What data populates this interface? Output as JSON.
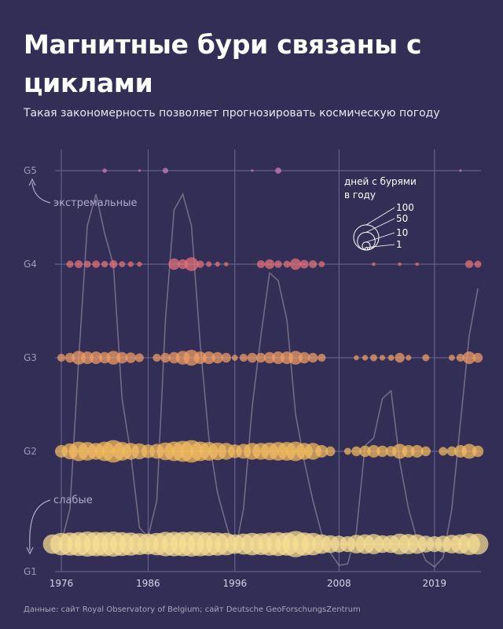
{
  "title": "Магнитные бури связаны с циклами",
  "subtitle": "Такая закономерность позволяет прогнозировать космическую погоду",
  "source": "Данные: сайт Royal Observatory of Belgium; сайт Deutsche GeoForschungsZentrum",
  "colors": {
    "background": "#322e55",
    "G1": "#f7df93",
    "G2": "#f5bd5f",
    "G3": "#f2a064",
    "G4": "#e9737c",
    "G5": "#d27cc4",
    "sunspot_line": "#8b7f98",
    "grid": "#6e6a92"
  },
  "chart_data": {
    "type": "scatter",
    "xlim": [
      1975,
      2024
    ],
    "x_ticks": [
      "1976",
      "1986",
      "1996",
      "2008",
      "2019"
    ],
    "levels": [
      "G1",
      "G2",
      "G3",
      "G4",
      "G5"
    ],
    "annotations": {
      "strong": "экстремальные",
      "weak": "слабые"
    },
    "legend": {
      "title_line1": "дней с бурями",
      "title_line2": "в году",
      "sizes": [
        100,
        50,
        10,
        1
      ],
      "labels": [
        "100",
        "50",
        "10",
        "1"
      ]
    },
    "series": [
      {
        "name": "G5",
        "points": [
          [
            1981,
            3
          ],
          [
            1985,
            1
          ],
          [
            1988,
            5
          ],
          [
            1998,
            1
          ],
          [
            2001,
            6
          ],
          [
            2022,
            1
          ]
        ]
      },
      {
        "name": "G4",
        "points": [
          [
            1977,
            8
          ],
          [
            1978,
            10
          ],
          [
            1979,
            8
          ],
          [
            1980,
            9
          ],
          [
            1981,
            7
          ],
          [
            1982,
            10
          ],
          [
            1983,
            6
          ],
          [
            1984,
            5
          ],
          [
            1985,
            4
          ],
          [
            1989,
            20
          ],
          [
            1990,
            15
          ],
          [
            1991,
            30
          ],
          [
            1992,
            9
          ],
          [
            1993,
            5
          ],
          [
            1994,
            4
          ],
          [
            1995,
            3
          ],
          [
            1999,
            10
          ],
          [
            2000,
            15
          ],
          [
            2001,
            9
          ],
          [
            2002,
            8
          ],
          [
            2003,
            20
          ],
          [
            2004,
            12
          ],
          [
            2005,
            10
          ],
          [
            2006,
            6
          ],
          [
            2012,
            2
          ],
          [
            2015,
            2
          ],
          [
            2017,
            2
          ],
          [
            2023,
            10
          ],
          [
            2024,
            8
          ]
        ]
      },
      {
        "name": "G3",
        "points": [
          [
            1976,
            10
          ],
          [
            1977,
            15
          ],
          [
            1978,
            30
          ],
          [
            1979,
            25
          ],
          [
            1980,
            25
          ],
          [
            1981,
            20
          ],
          [
            1982,
            30
          ],
          [
            1983,
            20
          ],
          [
            1984,
            18
          ],
          [
            1985,
            12
          ],
          [
            1987,
            10
          ],
          [
            1988,
            15
          ],
          [
            1989,
            20
          ],
          [
            1990,
            30
          ],
          [
            1991,
            40
          ],
          [
            1992,
            25
          ],
          [
            1993,
            25
          ],
          [
            1994,
            20
          ],
          [
            1995,
            15
          ],
          [
            1996,
            6
          ],
          [
            1997,
            10
          ],
          [
            1998,
            15
          ],
          [
            1999,
            15
          ],
          [
            2000,
            20
          ],
          [
            2001,
            25
          ],
          [
            2002,
            25
          ],
          [
            2003,
            30
          ],
          [
            2004,
            20
          ],
          [
            2005,
            15
          ],
          [
            2006,
            10
          ],
          [
            2010,
            4
          ],
          [
            2011,
            5
          ],
          [
            2012,
            8
          ],
          [
            2013,
            5
          ],
          [
            2014,
            6
          ],
          [
            2015,
            15
          ],
          [
            2016,
            5
          ],
          [
            2018,
            8
          ],
          [
            2021,
            6
          ],
          [
            2022,
            10
          ],
          [
            2023,
            25
          ],
          [
            2024,
            15
          ]
        ]
      },
      {
        "name": "G2",
        "points": [
          [
            1976,
            25
          ],
          [
            1977,
            40
          ],
          [
            1978,
            60
          ],
          [
            1979,
            55
          ],
          [
            1980,
            45
          ],
          [
            1981,
            60
          ],
          [
            1982,
            80
          ],
          [
            1983,
            55
          ],
          [
            1984,
            45
          ],
          [
            1985,
            40
          ],
          [
            1986,
            30
          ],
          [
            1987,
            35
          ],
          [
            1988,
            50
          ],
          [
            1989,
            60
          ],
          [
            1990,
            70
          ],
          [
            1991,
            80
          ],
          [
            1992,
            60
          ],
          [
            1993,
            55
          ],
          [
            1994,
            50
          ],
          [
            1995,
            45
          ],
          [
            1996,
            30
          ],
          [
            1997,
            35
          ],
          [
            1998,
            45
          ],
          [
            1999,
            45
          ],
          [
            2000,
            50
          ],
          [
            2001,
            55
          ],
          [
            2002,
            55
          ],
          [
            2003,
            60
          ],
          [
            2004,
            45
          ],
          [
            2005,
            45
          ],
          [
            2006,
            25
          ],
          [
            2007,
            15
          ],
          [
            2009,
            8
          ],
          [
            2010,
            15
          ],
          [
            2011,
            20
          ],
          [
            2012,
            25
          ],
          [
            2013,
            20
          ],
          [
            2014,
            18
          ],
          [
            2015,
            35
          ],
          [
            2016,
            25
          ],
          [
            2017,
            25
          ],
          [
            2018,
            15
          ],
          [
            2020,
            12
          ],
          [
            2021,
            15
          ],
          [
            2022,
            25
          ],
          [
            2023,
            35
          ],
          [
            2024,
            20
          ]
        ]
      },
      {
        "name": "G1",
        "points": [
          [
            1975,
            60
          ],
          [
            1976,
            80
          ],
          [
            1977,
            85
          ],
          [
            1978,
            90
          ],
          [
            1979,
            100
          ],
          [
            1980,
            95
          ],
          [
            1981,
            95
          ],
          [
            1982,
            100
          ],
          [
            1983,
            90
          ],
          [
            1984,
            85
          ],
          [
            1985,
            75
          ],
          [
            1986,
            70
          ],
          [
            1987,
            80
          ],
          [
            1988,
            95
          ],
          [
            1989,
            95
          ],
          [
            1990,
            95
          ],
          [
            1991,
            100
          ],
          [
            1992,
            95
          ],
          [
            1993,
            90
          ],
          [
            1994,
            85
          ],
          [
            1995,
            80
          ],
          [
            1996,
            60
          ],
          [
            1997,
            70
          ],
          [
            1998,
            80
          ],
          [
            1999,
            75
          ],
          [
            2000,
            85
          ],
          [
            2001,
            90
          ],
          [
            2002,
            85
          ],
          [
            2003,
            110
          ],
          [
            2004,
            85
          ],
          [
            2005,
            80
          ],
          [
            2006,
            60
          ],
          [
            2007,
            50
          ],
          [
            2008,
            45
          ],
          [
            2009,
            40
          ],
          [
            2010,
            55
          ],
          [
            2011,
            60
          ],
          [
            2012,
            65
          ],
          [
            2013,
            50
          ],
          [
            2014,
            50
          ],
          [
            2015,
            70
          ],
          [
            2016,
            65
          ],
          [
            2017,
            60
          ],
          [
            2018,
            45
          ],
          [
            2019,
            40
          ],
          [
            2020,
            45
          ],
          [
            2021,
            55
          ],
          [
            2022,
            60
          ],
          [
            2023,
            75
          ],
          [
            2024,
            70
          ]
        ]
      }
    ],
    "sunspot_background": {
      "name": "",
      "x": [
        1976,
        1977,
        1978,
        1979,
        1980,
        1981,
        1982,
        1983,
        1984,
        1985,
        1986,
        1987,
        1988,
        1989,
        1990,
        1991,
        1992,
        1993,
        1994,
        1995,
        1996,
        1997,
        1998,
        1999,
        2000,
        2001,
        2002,
        2003,
        2004,
        2005,
        2006,
        2007,
        2008,
        2009,
        2010,
        2011,
        2012,
        2013,
        2014,
        2015,
        2016,
        2017,
        2018,
        2019,
        2020,
        2021,
        2022,
        2023,
        2024
      ],
      "y": [
        18,
        40,
        135,
        220,
        240,
        215,
        195,
        110,
        75,
        28,
        22,
        45,
        160,
        230,
        240,
        220,
        145,
        85,
        50,
        30,
        12,
        40,
        105,
        150,
        190,
        185,
        160,
        100,
        70,
        45,
        24,
        12,
        4,
        5,
        25,
        80,
        85,
        110,
        115,
        70,
        40,
        20,
        7,
        3,
        9,
        40,
        95,
        150,
        180
      ]
    }
  }
}
